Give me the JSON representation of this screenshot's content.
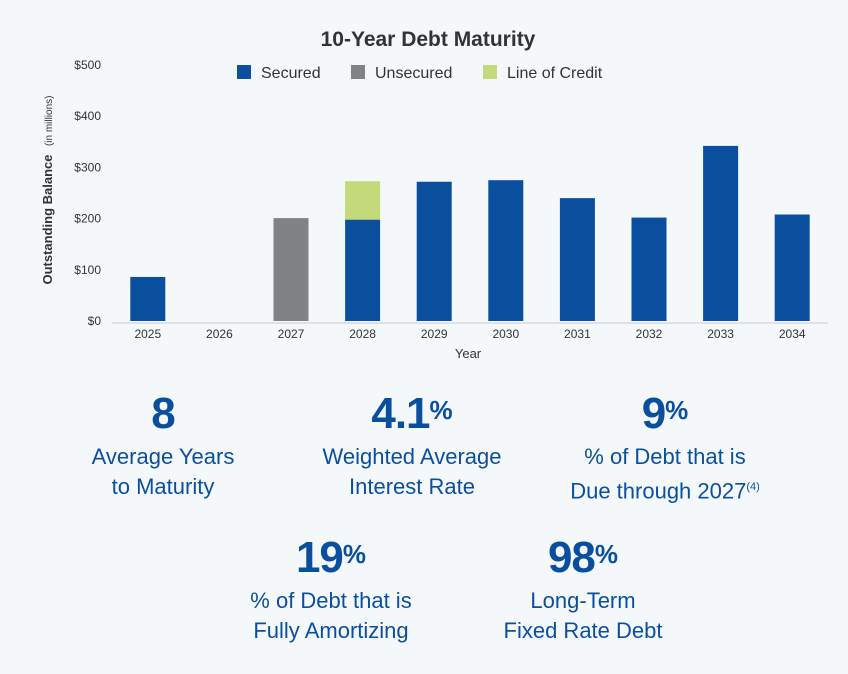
{
  "chart_data": {
    "type": "bar",
    "stacked": true,
    "title": "10-Year Debt Maturity",
    "xlabel": "Year",
    "ylabel": "Outstanding Balance",
    "ylabel_unit": "(in millions)",
    "categories": [
      "2025",
      "2026",
      "2027",
      "2028",
      "2029",
      "2030",
      "2031",
      "2032",
      "2033",
      "2034"
    ],
    "series": [
      {
        "name": "Secured",
        "color": "#0a4f9e",
        "values": [
          86,
          0,
          0,
          198,
          272,
          275,
          240,
          202,
          342,
          208
        ]
      },
      {
        "name": "Unsecured",
        "color": "#808284",
        "values": [
          0,
          0,
          201,
          0,
          0,
          0,
          0,
          0,
          0,
          0
        ]
      },
      {
        "name": "Line of Credit",
        "color": "#c3d97a",
        "values": [
          0,
          0,
          0,
          75,
          0,
          0,
          0,
          0,
          0,
          0
        ]
      }
    ],
    "ylim": [
      0,
      500
    ],
    "yticks": [
      0,
      100,
      200,
      300,
      400,
      500
    ],
    "ytick_labels": [
      "$0",
      "$100",
      "$200",
      "$300",
      "$400",
      "$500"
    ],
    "legend_position": "top-center",
    "grid": false
  },
  "stats": [
    {
      "value": "8",
      "suffix": "",
      "line1": "Average Years",
      "line2": "to Maturity",
      "footnote": ""
    },
    {
      "value": "4.1",
      "suffix": "%",
      "line1": "Weighted Average",
      "line2": "Interest Rate",
      "footnote": ""
    },
    {
      "value": "9",
      "suffix": "%",
      "line1": "% of Debt that is",
      "line2": "Due through 2027",
      "footnote": "(4)"
    },
    {
      "value": "19",
      "suffix": "%",
      "line1": "% of Debt that is",
      "line2": "Fully Amortizing",
      "footnote": ""
    },
    {
      "value": "98",
      "suffix": "%",
      "line1": "Long-Term",
      "line2": "Fixed Rate Debt",
      "footnote": ""
    }
  ]
}
